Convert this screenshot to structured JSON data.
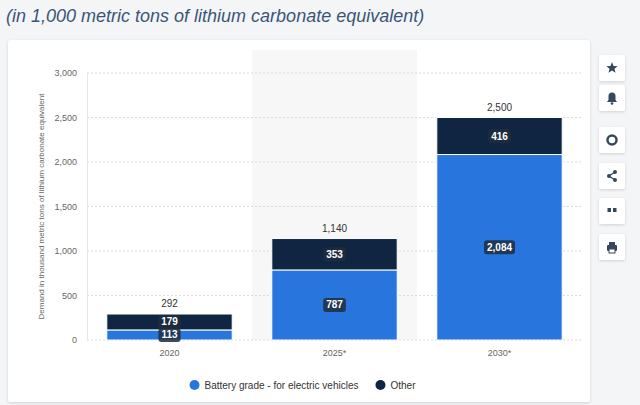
{
  "chart_data": {
    "type": "bar",
    "subtitle": "(in 1,000 metric tons of lithium carbonate equivalent)",
    "y_label": "Demand in thousand metric tons of lithium carbonate equivalent",
    "categories": [
      "2020",
      "2025*",
      "2030*"
    ],
    "series": [
      {
        "name": "Battery grade - for electric vehicles",
        "color": "#2876dd",
        "values": [
          113,
          787,
          2084
        ],
        "value_labels": [
          "113",
          "787",
          "2,084"
        ]
      },
      {
        "name": "Other",
        "color": "#0f2542",
        "values": [
          179,
          353,
          416
        ]
      }
    ],
    "totals": {
      "values": [
        292,
        1140,
        2500
      ],
      "value_labels": [
        "292",
        "1,140",
        "2,500"
      ]
    },
    "ylim": [
      0,
      3000
    ],
    "yticks": [
      0,
      500,
      {
        "value": 1000,
        "label": "1,000"
      },
      {
        "value": 1500,
        "label": "1,500"
      },
      {
        "value": 2000,
        "label": "2,000"
      },
      {
        "value": 2500,
        "label": "2,500"
      },
      {
        "value": 3000,
        "label": "3,000"
      }
    ],
    "stacked": true,
    "data_labels": true,
    "grid": true,
    "legend": "bottom"
  }
}
